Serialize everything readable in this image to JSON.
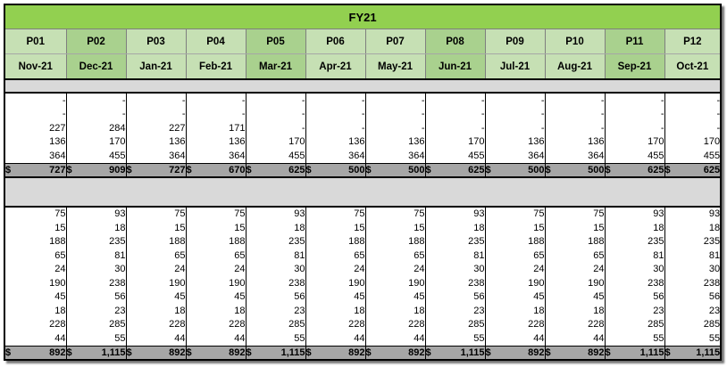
{
  "title": "FY21",
  "currency_symbol": "$",
  "periods": [
    "P01",
    "P02",
    "P03",
    "P04",
    "P05",
    "P06",
    "P07",
    "P08",
    "P09",
    "P10",
    "P11",
    "P12"
  ],
  "months": [
    "Nov-21",
    "Dec-21",
    "Jan-21",
    "Feb-21",
    "Mar-21",
    "Apr-21",
    "May-21",
    "Jun-21",
    "Jul-21",
    "Aug-21",
    "Sep-21",
    "Oct-21"
  ],
  "colors": {
    "title_green": "#92d050",
    "header_light": "#c6e0b4",
    "header_dark": "#a9d18e",
    "gap_gray": "#d9d9d9",
    "total_gray": "#a6a6a6"
  },
  "section1": {
    "rows": [
      [
        "-",
        "-",
        "-",
        "-",
        "-",
        "-",
        "-",
        "-",
        "-",
        "-",
        "-",
        "-"
      ],
      [
        "-",
        "-",
        "-",
        "-",
        "-",
        "-",
        "-",
        "-",
        "-",
        "-",
        "-",
        "-"
      ],
      [
        "227",
        "284",
        "227",
        "171",
        "-",
        "-",
        "-",
        "-",
        "-",
        "-",
        "-",
        "-"
      ],
      [
        "136",
        "170",
        "136",
        "136",
        "170",
        "136",
        "136",
        "170",
        "136",
        "136",
        "170",
        "170"
      ],
      [
        "364",
        "455",
        "364",
        "364",
        "455",
        "364",
        "364",
        "455",
        "364",
        "364",
        "455",
        "455"
      ]
    ],
    "totals": [
      "727",
      "909",
      "727",
      "670",
      "625",
      "500",
      "500",
      "625",
      "500",
      "500",
      "625",
      "625"
    ]
  },
  "section2": {
    "rows": [
      [
        "75",
        "93",
        "75",
        "75",
        "93",
        "75",
        "75",
        "93",
        "75",
        "75",
        "93",
        "93"
      ],
      [
        "15",
        "18",
        "15",
        "15",
        "18",
        "15",
        "15",
        "18",
        "15",
        "15",
        "18",
        "18"
      ],
      [
        "188",
        "235",
        "188",
        "188",
        "235",
        "188",
        "188",
        "235",
        "188",
        "188",
        "235",
        "235"
      ],
      [
        "65",
        "81",
        "65",
        "65",
        "81",
        "65",
        "65",
        "81",
        "65",
        "65",
        "81",
        "81"
      ],
      [
        "24",
        "30",
        "24",
        "24",
        "30",
        "24",
        "24",
        "30",
        "24",
        "24",
        "30",
        "30"
      ],
      [
        "190",
        "238",
        "190",
        "190",
        "238",
        "190",
        "190",
        "238",
        "190",
        "190",
        "238",
        "238"
      ],
      [
        "45",
        "56",
        "45",
        "45",
        "56",
        "45",
        "45",
        "56",
        "45",
        "45",
        "56",
        "56"
      ],
      [
        "18",
        "23",
        "18",
        "18",
        "23",
        "18",
        "18",
        "23",
        "18",
        "18",
        "23",
        "23"
      ],
      [
        "228",
        "285",
        "228",
        "228",
        "285",
        "228",
        "228",
        "285",
        "228",
        "228",
        "285",
        "285"
      ],
      [
        "44",
        "55",
        "44",
        "44",
        "55",
        "44",
        "44",
        "55",
        "44",
        "44",
        "55",
        "55"
      ]
    ],
    "totals": [
      "892",
      "1,115",
      "892",
      "892",
      "1,115",
      "892",
      "892",
      "1,115",
      "892",
      "892",
      "1,115",
      "1,115"
    ]
  }
}
